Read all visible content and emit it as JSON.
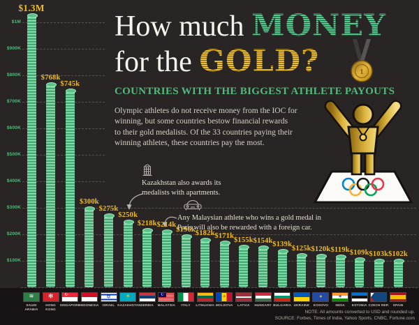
{
  "title": {
    "line1_white": "How much",
    "line1_accent": "MONEY",
    "line2_white": "for the",
    "line2_accent": "GOLD?"
  },
  "subtitle": "COUNTRIES WITH THE BIGGEST ATHLETE PAYOUTS",
  "description_lines": [
    "Olympic athletes do not receive money from the IOC for",
    "winning, but some countries bestow financial rewards",
    "to their gold medalists. Of the 33 countries paying their",
    "winning athletes, these countries pay the most."
  ],
  "annotations": [
    {
      "icon": "building-icon",
      "text_lines": [
        "Kazakhstan also awards its",
        "medalists with apartments."
      ],
      "points_to": "$250k (Kazakhstan)"
    },
    {
      "icon": "car-icon",
      "text_lines": [
        "Any Malaysian athlete who wins a gold medal in",
        "Paris will also be rewarded with a foreign car."
      ],
      "points_to": "$214k (Malaysia)"
    }
  ],
  "footer": {
    "note": "NOTE: All amounts converted to USD and rounded up.",
    "source": "SOURCE: Forbes, Times of India, Yahoo Sports, CNBC, Fortune.com"
  },
  "chart_data": {
    "type": "bar",
    "title": "How much MONEY for the GOLD? — Countries with the biggest athlete payouts",
    "unit": "USD (thousands)",
    "categories": [
      "SAUDI ARABIA",
      "HONG KONG",
      "SINGAPORE",
      "INDONESIA",
      "ISRAEL",
      "KAZAKHSTAN",
      "SERBIA",
      "MALAYSIA",
      "ITALY",
      "LITHUANIA",
      "MOLDOVA",
      "LATVIA",
      "HUNGARY",
      "BULGARIA",
      "UKRAINE",
      "KOSOVO",
      "INDIA",
      "ESTONIA",
      "CZECH REP.",
      "SPAIN"
    ],
    "values": [
      1300,
      768,
      745,
      300,
      275,
      250,
      218,
      214,
      196,
      182,
      171,
      155,
      154,
      139,
      125,
      120,
      119,
      109,
      103,
      102
    ],
    "value_labels": [
      "$1.3M",
      "$768k",
      "$745k",
      "$300k",
      "$275k",
      "$250k",
      "$218k",
      "$214k",
      "$196k",
      "$182k",
      "$171k",
      "$155k",
      "$154k",
      "$139k",
      "$125k",
      "$120k",
      "$119k",
      "$109k",
      "$103k",
      "$102k"
    ],
    "yticks": [
      "$1M",
      "$900K",
      "$800K",
      "$700K",
      "$600K",
      "$500K",
      "$400K",
      "$300K",
      "$200K",
      "$100K"
    ],
    "ylim": [
      0,
      1000
    ],
    "grid": "dashed horizontal lines; tallest bar clipped at top of canvas",
    "bar_style": "stack of green coins",
    "bar_color": "#5cc289",
    "label_color": "#eebb24"
  },
  "flags": [
    {
      "name": "SAUDI ARABIA",
      "css": "#2f7d46",
      "em": "≋",
      "ec": "#ffffff",
      "ex": 50,
      "ey": 42,
      "es": 8
    },
    {
      "name": "HONG KONG",
      "css": "#d8232a",
      "em": "✻",
      "ec": "#ffffff",
      "ex": 50,
      "ey": 50,
      "es": 9
    },
    {
      "name": "SINGAPORE",
      "css": "linear-gradient(180deg,#ed2939 0 50%,#ffffff 50% 100%)",
      "em": "☪",
      "ec": "#ffffff",
      "ex": 28,
      "ey": 26,
      "es": 6
    },
    {
      "name": "INDONESIA",
      "css": "linear-gradient(180deg,#ce1126 0 50%,#ffffff 50% 100%)"
    },
    {
      "name": "ISRAEL",
      "css": "linear-gradient(180deg,#ffffff 0 14%,#0038b8 14% 28%,#ffffff 28% 72%,#0038b8 72% 86%,#ffffff 86% 100%)",
      "em": "✡",
      "ec": "#0038b8",
      "ex": 50,
      "ey": 50,
      "es": 8
    },
    {
      "name": "KAZAKHSTAN",
      "css": "#00abc2",
      "em": "☀",
      "ec": "#fec50c",
      "ex": 50,
      "ey": 45,
      "es": 8
    },
    {
      "name": "SERBIA",
      "css": "linear-gradient(180deg,#c6363c 0 33%,#0c4076 33% 67%,#ffffff 67% 100%)"
    },
    {
      "name": "MALAYSIA",
      "css": "linear-gradient(#010066,#010066) 0 0/50% 50% no-repeat, repeating-linear-gradient(180deg,#cc0001 0 1px,#ffffff 1px 2px)",
      "em": "☪",
      "ec": "#ffcc00",
      "ex": 25,
      "ey": 25,
      "es": 6
    },
    {
      "name": "ITALY",
      "css": "linear-gradient(90deg,#009246 0 33%,#ffffff 33% 67%,#ce2b37 67% 100%)"
    },
    {
      "name": "LITHUANIA",
      "css": "linear-gradient(180deg,#fdb913 0 33%,#006a44 33% 67%,#c1272d 67% 100%)"
    },
    {
      "name": "MOLDOVA",
      "css": "linear-gradient(90deg,#0046ae 0 33%,#ffd200 33% 67%,#cc092f 67% 100%)",
      "em": "⚜",
      "ec": "#8b5a2b",
      "ex": 50,
      "ey": 50,
      "es": 6
    },
    {
      "name": "LATVIA",
      "css": "linear-gradient(180deg,#9e3039 0 40%,#ffffff 40% 60%,#9e3039 60% 100%)"
    },
    {
      "name": "HUNGARY",
      "css": "linear-gradient(180deg,#cd2a3e 0 33%,#ffffff 33% 67%,#436f4d 67% 100%)"
    },
    {
      "name": "BULGARIA",
      "css": "linear-gradient(180deg,#ffffff 0 33%,#00966e 33% 67%,#d62612 67% 100%)"
    },
    {
      "name": "UKRAINE",
      "css": "linear-gradient(180deg,#005bbb 0 50%,#ffd500 50% 100%)"
    },
    {
      "name": "KOSOVO",
      "css": "#244aa5",
      "em": "✦",
      "ec": "#e8c33c",
      "ex": 50,
      "ey": 52,
      "es": 7
    },
    {
      "name": "INDIA",
      "css": "linear-gradient(180deg,#ff9933 0 33%,#ffffff 33% 67%,#128807 67% 100%)",
      "em": "☸",
      "ec": "#000080",
      "ex": 50,
      "ey": 50,
      "es": 5
    },
    {
      "name": "ESTONIA",
      "css": "linear-gradient(180deg,#0072ce 0 33%,#111111 33% 67%,#ffffff 67% 100%)"
    },
    {
      "name": "CZECH REP.",
      "css": "conic-gradient(from 0deg at 0% 50%, rgba(0,0,0,0) 0 38deg, #11457e 38deg 142deg, rgba(0,0,0,0) 142deg 360deg), linear-gradient(180deg,#ffffff 0 50%,#d7141a 50% 100%)"
    },
    {
      "name": "SPAIN",
      "css": "linear-gradient(180deg,#aa151b 0 25%,#f1bf00 25% 75%,#aa151b 75% 100%)"
    }
  ],
  "colors": {
    "background": "#292525",
    "bottom_strip": "#171314",
    "bar_green": "#5cc289",
    "bar_green_light": "#a3eac0",
    "bar_green_dark": "#3f9e6c",
    "value_label_gold": "#eebb24",
    "axis_label_green": "#56bb80",
    "gridline": "#56504e",
    "title_white": "#f6f3ed",
    "money_green": "#58c78c",
    "gold_yellow": "#d9a81c",
    "subtitle_green": "#52ba7d",
    "body_text": "#d6d0c7",
    "annotation_text": "#e3ded6",
    "footer_text": "#b3ada5"
  }
}
